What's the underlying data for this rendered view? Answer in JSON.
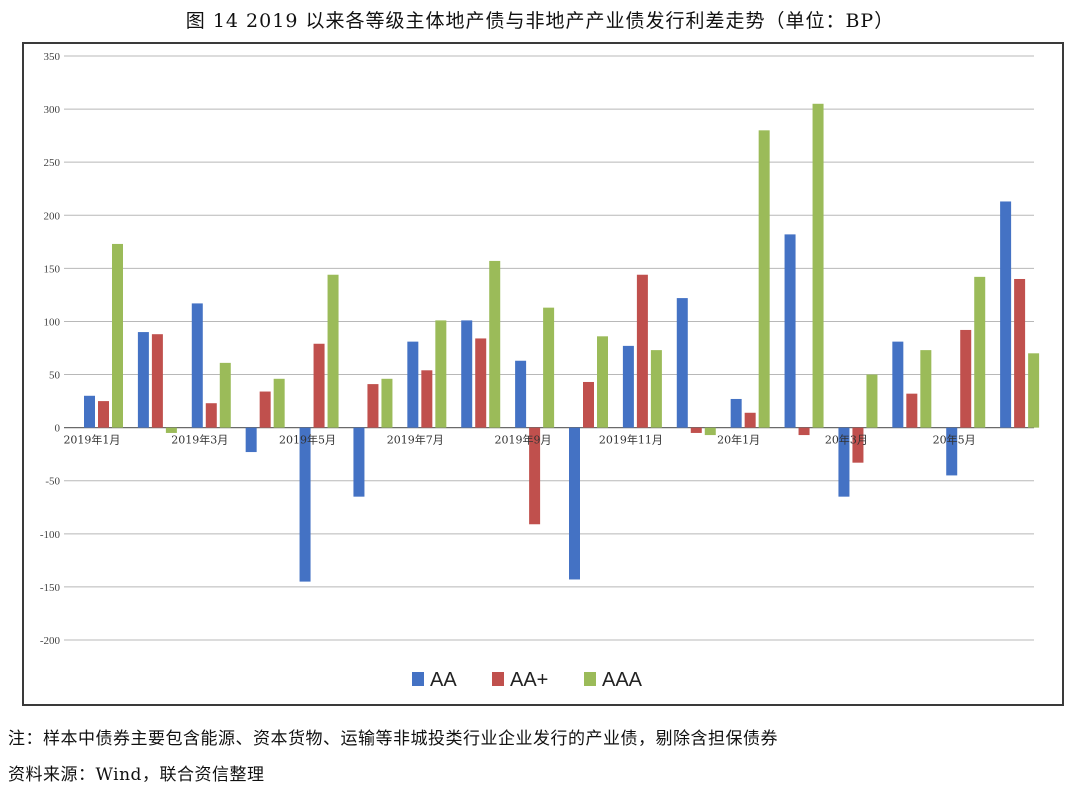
{
  "title": "图 14   2019 以来各等级主体地产债与非地产产业债发行利差走势（单位：BP）",
  "note": "注：样本中债券主要包含能源、资本货物、运输等非城投类行业企业发行的产业债，剔除含担保债券",
  "source": "资料来源：Wind，联合资信整理",
  "chart_data": {
    "type": "bar",
    "title": "图 14   2019 以来各等级主体地产债与非地产产业债发行利差走势（单位：BP）",
    "ylim": [
      -200,
      350
    ],
    "yticks": [
      350,
      300,
      250,
      200,
      150,
      100,
      50,
      0,
      -50,
      -100,
      -150,
      -200
    ],
    "grid": true,
    "legend_position": "bottom",
    "categories": [
      "2019年1月",
      "",
      "2019年3月",
      "",
      "2019年5月",
      "",
      "2019年7月",
      "",
      "2019年9月",
      "",
      "2019年11月",
      "",
      "20年1月",
      "",
      "20年3月",
      "",
      "20年5月",
      ""
    ],
    "series": [
      {
        "name": "AA",
        "color": "#4472c4",
        "values": [
          30,
          90,
          117,
          -23,
          -145,
          -65,
          81,
          101,
          63,
          -143,
          77,
          122,
          27,
          182,
          -65,
          81,
          -45,
          213
        ]
      },
      {
        "name": "AA+",
        "color": "#c0504d",
        "values": [
          25,
          88,
          23,
          34,
          79,
          41,
          54,
          84,
          -91,
          43,
          144,
          -5,
          14,
          -7,
          -33,
          32,
          92,
          140
        ]
      },
      {
        "name": "AAA",
        "color": "#9bbb59",
        "values": [
          173,
          -5,
          61,
          46,
          144,
          46,
          101,
          157,
          113,
          86,
          73,
          -7,
          280,
          305,
          50,
          73,
          142,
          70
        ]
      }
    ]
  }
}
